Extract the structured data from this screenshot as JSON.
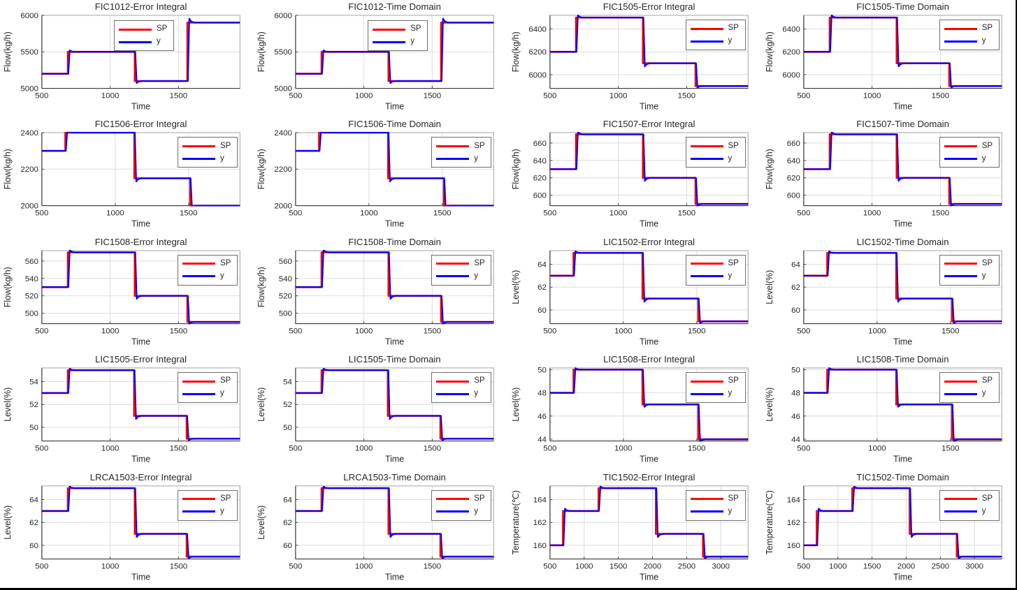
{
  "page": {
    "background": "#ffffff",
    "frame_border_color": "#000000",
    "grid_rows": 5,
    "grid_cols": 4
  },
  "colors": {
    "sp": "#FF0000",
    "y": "#0000FF",
    "grid": "#dcdcdc",
    "box": "#a3a3a3",
    "spine": "#3a3a3a",
    "text": "#262626"
  },
  "legend": {
    "entries": [
      {
        "name": "SP",
        "color": "#FF0000"
      },
      {
        "name": "y",
        "color": "#0000FF"
      }
    ]
  },
  "chart_data": [
    {
      "type": "line",
      "title": "FIC1012-Error Integral",
      "xlabel": "Time",
      "ylabel": "Flow(kg/h)",
      "xlim": [
        500,
        1950
      ],
      "ylim": [
        5000,
        6000
      ],
      "xticks": [
        500,
        1000,
        1500
      ],
      "yticks": [
        5000,
        5500,
        6000
      ],
      "legend": [
        "SP",
        "y"
      ],
      "legend_pos": "top-center",
      "series_sp_steps": [
        [
          500,
          5200
        ],
        [
          690,
          5500
        ],
        [
          1180,
          5100
        ],
        [
          1565,
          5900
        ]
      ]
    },
    {
      "type": "line",
      "title": "FIC1012-Time Domain",
      "xlabel": "Time",
      "ylabel": "Flow(kg/h)",
      "xlim": [
        500,
        1950
      ],
      "ylim": [
        5000,
        6000
      ],
      "xticks": [
        500,
        1000,
        1500
      ],
      "yticks": [
        5000,
        5500,
        6000
      ],
      "legend": [
        "SP",
        "y"
      ],
      "legend_pos": "top-center",
      "series_sp_steps": [
        [
          500,
          5200
        ],
        [
          690,
          5500
        ],
        [
          1180,
          5100
        ],
        [
          1565,
          5900
        ]
      ]
    },
    {
      "type": "line",
      "title": "FIC1505-Error Integral",
      "xlabel": "Time",
      "ylabel": "Flow(kg/h)",
      "xlim": [
        500,
        1950
      ],
      "ylim": [
        5880,
        6520
      ],
      "xticks": [
        500,
        1000,
        1500
      ],
      "yticks": [
        6000,
        6200,
        6400
      ],
      "legend": [
        "SP",
        "y"
      ],
      "legend_pos": "top-right",
      "series_sp_steps": [
        [
          500,
          6200
        ],
        [
          690,
          6500
        ],
        [
          1180,
          6100
        ],
        [
          1565,
          5900
        ]
      ]
    },
    {
      "type": "line",
      "title": "FIC1505-Time Domain",
      "xlabel": "Time",
      "ylabel": "Flow(kg/h)",
      "xlim": [
        500,
        1950
      ],
      "ylim": [
        5880,
        6520
      ],
      "xticks": [
        500,
        1000,
        1500
      ],
      "yticks": [
        6000,
        6200,
        6400
      ],
      "legend": [
        "SP",
        "y"
      ],
      "legend_pos": "top-right",
      "series_sp_steps": [
        [
          500,
          6200
        ],
        [
          690,
          6500
        ],
        [
          1180,
          6100
        ],
        [
          1565,
          5900
        ]
      ]
    },
    {
      "type": "line",
      "title": "FIC1506-Error Integral",
      "xlabel": "Time",
      "ylabel": "Flow(kg/h)",
      "xlim": [
        500,
        1850
      ],
      "ylim": [
        2000,
        2400
      ],
      "xticks": [
        500,
        1000,
        1500
      ],
      "yticks": [
        2000,
        2200,
        2400
      ],
      "legend": [
        "SP",
        "y"
      ],
      "legend_pos": "top-right",
      "series_sp_steps": [
        [
          500,
          2300
        ],
        [
          660,
          2400
        ],
        [
          1130,
          2150
        ],
        [
          1510,
          2000
        ]
      ]
    },
    {
      "type": "line",
      "title": "FIC1506-Time Domain",
      "xlabel": "Time",
      "ylabel": "Flow(kg/h)",
      "xlim": [
        500,
        1850
      ],
      "ylim": [
        2000,
        2400
      ],
      "xticks": [
        500,
        1000,
        1500
      ],
      "yticks": [
        2000,
        2200,
        2400
      ],
      "legend": [
        "SP",
        "y"
      ],
      "legend_pos": "top-right",
      "series_sp_steps": [
        [
          500,
          2300
        ],
        [
          660,
          2400
        ],
        [
          1130,
          2150
        ],
        [
          1510,
          2000
        ]
      ]
    },
    {
      "type": "line",
      "title": "FIC1507-Error Integral",
      "xlabel": "Time",
      "ylabel": "Flow(kg/h)",
      "xlim": [
        500,
        1950
      ],
      "ylim": [
        588,
        672
      ],
      "xticks": [
        500,
        1000,
        1500
      ],
      "yticks": [
        600,
        620,
        640,
        660
      ],
      "legend": [
        "SP",
        "y"
      ],
      "legend_pos": "top-right",
      "series_sp_steps": [
        [
          500,
          630
        ],
        [
          690,
          670
        ],
        [
          1180,
          620
        ],
        [
          1565,
          590
        ]
      ]
    },
    {
      "type": "line",
      "title": "FIC1507-Time Domain",
      "xlabel": "Time",
      "ylabel": "Flow(kg/h)",
      "xlim": [
        500,
        1950
      ],
      "ylim": [
        588,
        672
      ],
      "xticks": [
        500,
        1000,
        1500
      ],
      "yticks": [
        600,
        620,
        640,
        660
      ],
      "legend": [
        "SP",
        "y"
      ],
      "legend_pos": "top-right",
      "series_sp_steps": [
        [
          500,
          630
        ],
        [
          690,
          670
        ],
        [
          1180,
          620
        ],
        [
          1565,
          590
        ]
      ]
    },
    {
      "type": "line",
      "title": "FIC1508-Error Integral",
      "xlabel": "Time",
      "ylabel": "Flow(kg/h)",
      "xlim": [
        500,
        1950
      ],
      "ylim": [
        488,
        572
      ],
      "xticks": [
        500,
        1000,
        1500
      ],
      "yticks": [
        500,
        520,
        540,
        560
      ],
      "legend": [
        "SP",
        "y"
      ],
      "legend_pos": "top-right",
      "series_sp_steps": [
        [
          500,
          530
        ],
        [
          690,
          570
        ],
        [
          1180,
          520
        ],
        [
          1565,
          490
        ]
      ]
    },
    {
      "type": "line",
      "title": "FIC1508-Time Domain",
      "xlabel": "Time",
      "ylabel": "Flow(kg/h)",
      "xlim": [
        500,
        1950
      ],
      "ylim": [
        488,
        572
      ],
      "xticks": [
        500,
        1000,
        1500
      ],
      "yticks": [
        500,
        520,
        540,
        560
      ],
      "legend": [
        "SP",
        "y"
      ],
      "legend_pos": "top-right",
      "series_sp_steps": [
        [
          500,
          530
        ],
        [
          690,
          570
        ],
        [
          1180,
          520
        ],
        [
          1565,
          490
        ]
      ]
    },
    {
      "type": "line",
      "title": "LIC1502-Error Integral",
      "xlabel": "Time",
      "ylabel": "Level(%)",
      "xlim": [
        500,
        1850
      ],
      "ylim": [
        58.8,
        65.2
      ],
      "xticks": [
        500,
        1000,
        1500
      ],
      "yticks": [
        60,
        62,
        64
      ],
      "legend": [
        "SP",
        "y"
      ],
      "legend_pos": "top-right",
      "series_sp_steps": [
        [
          500,
          63
        ],
        [
          660,
          65
        ],
        [
          1130,
          61
        ],
        [
          1510,
          59
        ]
      ]
    },
    {
      "type": "line",
      "title": "LIC1502-Time Domain",
      "xlabel": "Time",
      "ylabel": "Level(%)",
      "xlim": [
        500,
        1850
      ],
      "ylim": [
        58.8,
        65.2
      ],
      "xticks": [
        500,
        1000,
        1500
      ],
      "yticks": [
        60,
        62,
        64
      ],
      "legend": [
        "SP",
        "y"
      ],
      "legend_pos": "top-right",
      "series_sp_steps": [
        [
          500,
          63
        ],
        [
          660,
          65
        ],
        [
          1130,
          61
        ],
        [
          1510,
          59
        ]
      ]
    },
    {
      "type": "line",
      "title": "LIC1505-Error Integral",
      "xlabel": "Time",
      "ylabel": "Level(%)",
      "xlim": [
        500,
        1950
      ],
      "ylim": [
        48.8,
        55.2
      ],
      "xticks": [
        500,
        1000,
        1500
      ],
      "yticks": [
        50,
        52,
        54
      ],
      "legend": [
        "SP",
        "y"
      ],
      "legend_pos": "top-right",
      "series_sp_steps": [
        [
          500,
          53
        ],
        [
          690,
          55
        ],
        [
          1175,
          51
        ],
        [
          1560,
          49
        ]
      ]
    },
    {
      "type": "line",
      "title": "LIC1505-Time Domain",
      "xlabel": "Time",
      "ylabel": "Level(%)",
      "xlim": [
        500,
        1950
      ],
      "ylim": [
        48.8,
        55.2
      ],
      "xticks": [
        500,
        1000,
        1500
      ],
      "yticks": [
        50,
        52,
        54
      ],
      "legend": [
        "SP",
        "y"
      ],
      "legend_pos": "top-right",
      "series_sp_steps": [
        [
          500,
          53
        ],
        [
          690,
          55
        ],
        [
          1175,
          51
        ],
        [
          1560,
          49
        ]
      ]
    },
    {
      "type": "line",
      "title": "LIC1508-Error Integral",
      "xlabel": "Time",
      "ylabel": "Level(%)",
      "xlim": [
        500,
        1850
      ],
      "ylim": [
        43.85,
        50.15
      ],
      "xticks": [
        500,
        1000,
        1500
      ],
      "yticks": [
        44,
        46,
        48,
        50
      ],
      "legend": [
        "SP",
        "y"
      ],
      "legend_pos": "top-right",
      "series_sp_steps": [
        [
          500,
          48
        ],
        [
          660,
          50
        ],
        [
          1130,
          47
        ],
        [
          1510,
          44
        ]
      ]
    },
    {
      "type": "line",
      "title": "LIC1508-Time Domain",
      "xlabel": "Time",
      "ylabel": "Level(%)",
      "xlim": [
        500,
        1850
      ],
      "ylim": [
        43.85,
        50.15
      ],
      "xticks": [
        500,
        1000,
        1500
      ],
      "yticks": [
        44,
        46,
        48,
        50
      ],
      "legend": [
        "SP",
        "y"
      ],
      "legend_pos": "top-right",
      "series_sp_steps": [
        [
          500,
          48
        ],
        [
          660,
          50
        ],
        [
          1130,
          47
        ],
        [
          1510,
          44
        ]
      ]
    },
    {
      "type": "line",
      "title": "LRCA1503-Error Integral",
      "xlabel": "Time",
      "ylabel": "Level(%)",
      "xlim": [
        500,
        1950
      ],
      "ylim": [
        58.8,
        65.2
      ],
      "xticks": [
        500,
        1000,
        1500
      ],
      "yticks": [
        60,
        62,
        64
      ],
      "legend": [
        "SP",
        "y"
      ],
      "legend_pos": "top-right",
      "series_sp_steps": [
        [
          500,
          63
        ],
        [
          690,
          65
        ],
        [
          1180,
          61
        ],
        [
          1560,
          59
        ]
      ]
    },
    {
      "type": "line",
      "title": "LRCA1503-Time Domain",
      "xlabel": "Time",
      "ylabel": "Level(%)",
      "xlim": [
        500,
        1950
      ],
      "ylim": [
        58.8,
        65.2
      ],
      "xticks": [
        500,
        1000,
        1500
      ],
      "yticks": [
        60,
        62,
        64
      ],
      "legend": [
        "SP",
        "y"
      ],
      "legend_pos": "top-right",
      "series_sp_steps": [
        [
          500,
          63
        ],
        [
          690,
          65
        ],
        [
          1180,
          61
        ],
        [
          1560,
          59
        ]
      ]
    },
    {
      "type": "line",
      "title": "TIC1502-Error Integral",
      "xlabel": "Time",
      "ylabel": "Temperature(℃)",
      "xlim": [
        500,
        3400
      ],
      "ylim": [
        158.8,
        165.2
      ],
      "xticks": [
        500,
        1000,
        1500,
        2000,
        2500,
        3000
      ],
      "yticks": [
        160,
        162,
        164
      ],
      "legend": [
        "SP",
        "y"
      ],
      "legend_pos": "top-right",
      "series_sp_steps": [
        [
          500,
          160
        ],
        [
          690,
          163
        ],
        [
          1210,
          165
        ],
        [
          2050,
          161
        ],
        [
          2740,
          159
        ]
      ]
    },
    {
      "type": "line",
      "title": "TIC1502-Time Domain",
      "xlabel": "Time",
      "ylabel": "Temperature(℃)",
      "xlim": [
        500,
        3400
      ],
      "ylim": [
        158.8,
        165.2
      ],
      "xticks": [
        500,
        1000,
        1500,
        2000,
        2500,
        3000
      ],
      "yticks": [
        160,
        162,
        164
      ],
      "legend": [
        "SP",
        "y"
      ],
      "legend_pos": "top-right",
      "series_sp_steps": [
        [
          500,
          160
        ],
        [
          690,
          163
        ],
        [
          1210,
          165
        ],
        [
          2050,
          161
        ],
        [
          2740,
          159
        ]
      ]
    }
  ]
}
